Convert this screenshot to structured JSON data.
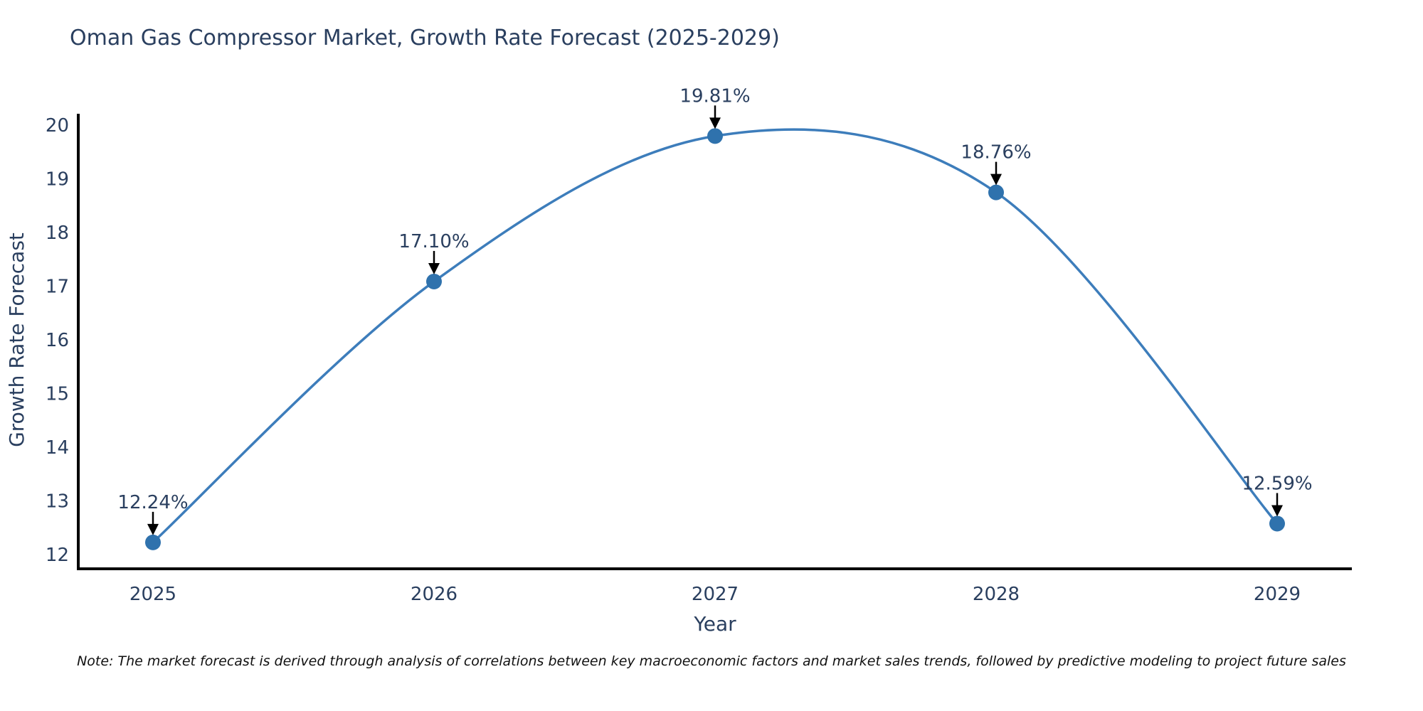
{
  "title": "Oman Gas Compressor Market, Growth Rate Forecast (2025-2029)",
  "note": "Note: The market forecast is derived through analysis of correlations between key macroeconomic factors and market sales trends, followed by predictive modeling to project future sales",
  "chart_data": {
    "type": "line",
    "title": "Oman Gas Compressor Market, Growth Rate Forecast (2025-2029)",
    "xlabel": "Year",
    "ylabel": "Growth Rate Forecast",
    "categories": [
      "2025",
      "2026",
      "2027",
      "2028",
      "2029"
    ],
    "series": [
      {
        "name": "Growth Rate Forecast",
        "values": [
          12.24,
          17.1,
          19.81,
          18.76,
          12.59
        ]
      }
    ],
    "point_labels": [
      "12.24%",
      "17.10%",
      "19.81%",
      "18.76%",
      "12.59%"
    ],
    "yticks": [
      12,
      13,
      14,
      15,
      16,
      17,
      18,
      19,
      20
    ],
    "ylim": [
      11.75,
      20.25
    ],
    "grid": false,
    "legend_position": "none",
    "line_shape": "spline",
    "annotation_style": "label-above-with-down-arrow",
    "colors": {
      "line": "#3d7dbb",
      "marker": "#2f72ad",
      "text": "#2a3f5f",
      "axis": "#000000",
      "arrow": "#000000",
      "note_text": "#111111",
      "background": "#ffffff"
    }
  }
}
